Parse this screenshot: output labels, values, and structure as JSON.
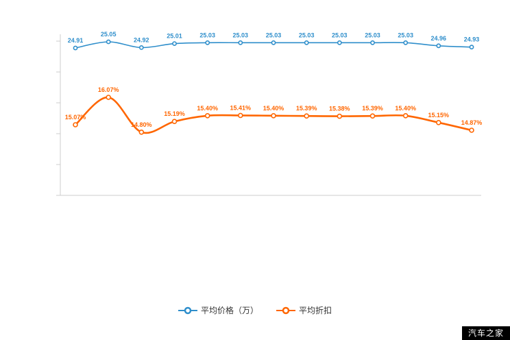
{
  "colors": {
    "price_line": "#2e8ecb",
    "discount_line": "#ff6600",
    "axis": "#cccccc",
    "watermark_bg": "#000000",
    "watermark_text": "#ffffff"
  },
  "chart_data": {
    "type": "line",
    "x_count": 13,
    "title": "",
    "grid": false,
    "legend_position": "bottom",
    "series": [
      {
        "name": "平均价格（万）",
        "color": "#2e8ecb",
        "unit": "万",
        "values": [
          24.91,
          25.05,
          24.92,
          25.01,
          25.03,
          25.03,
          25.03,
          25.03,
          25.03,
          25.03,
          25.03,
          24.96,
          24.93
        ],
        "labels": [
          "24.91",
          "25.05",
          "24.92",
          "25.01",
          "25.03",
          "25.03",
          "25.03",
          "25.03",
          "25.03",
          "25.03",
          "25.03",
          "24.96",
          "24.93"
        ]
      },
      {
        "name": "平均折扣",
        "color": "#ff6600",
        "unit": "%",
        "values": [
          15.07,
          16.07,
          14.8,
          15.19,
          15.4,
          15.41,
          15.4,
          15.39,
          15.38,
          15.39,
          15.4,
          15.15,
          14.87
        ],
        "labels": [
          "15.07%",
          "16.07%",
          "14.80%",
          "15.19%",
          "15.40%",
          "15.41%",
          "15.40%",
          "15.39%",
          "15.38%",
          "15.39%",
          "15.40%",
          "15.15%",
          "14.87%"
        ]
      }
    ]
  },
  "legend": {
    "items": [
      {
        "label": "平均价格（万）",
        "color": "#2e8ecb"
      },
      {
        "label": "平均折扣",
        "color": "#ff6600"
      }
    ]
  },
  "watermark": {
    "text": "汽车之家"
  }
}
